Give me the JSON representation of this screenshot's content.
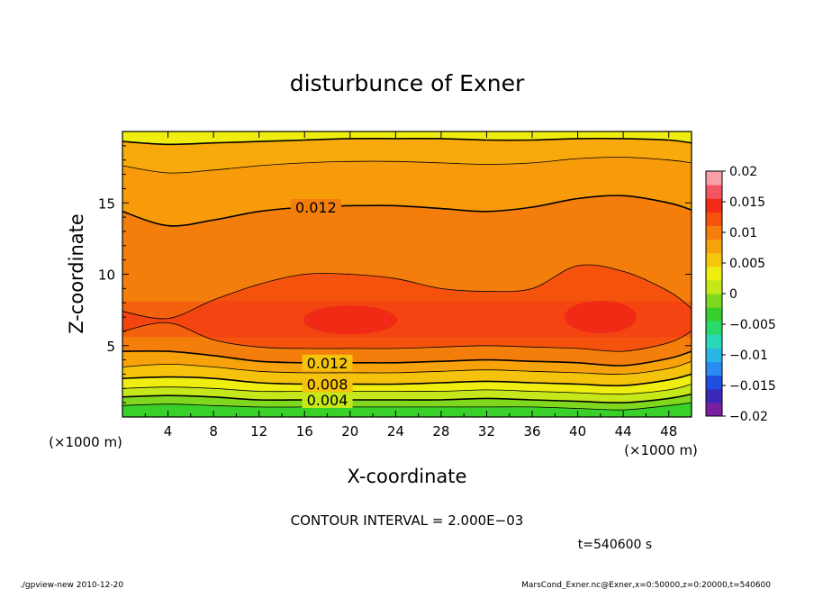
{
  "chart_data": {
    "type": "heatmap",
    "title": "disturbunce of Exner",
    "xlabel": "X-coordinate",
    "ylabel": "Z-coordinate",
    "x_unit": "(×1000 m)",
    "y_unit": "(×1000 m)",
    "xlim": [
      0,
      50
    ],
    "ylim": [
      0,
      20
    ],
    "x_ticks": [
      "4",
      "8",
      "12",
      "16",
      "20",
      "24",
      "28",
      "32",
      "36",
      "40",
      "44",
      "48"
    ],
    "y_ticks": [
      "5",
      "10",
      "15"
    ],
    "colorbar": {
      "range": [
        -0.02,
        0.02
      ],
      "tick_labels": [
        "0.02",
        "0.015",
        "0.01",
        "0.005",
        "0",
        "−0.005",
        "−0.01",
        "−0.015",
        "−0.02"
      ],
      "colors": [
        "#7a1fa2",
        "#3a2ab8",
        "#1e4fe0",
        "#2a8cf0",
        "#28b7e6",
        "#29d8b8",
        "#2bd96a",
        "#38cf2e",
        "#7fd81e",
        "#c6e81a",
        "#f0ee10",
        "#f4c70c",
        "#f6a20a",
        "#f77d0c",
        "#f5520e",
        "#f22a16",
        "#f45560",
        "#f7a0a6"
      ]
    },
    "contours": [
      {
        "level": 0.004,
        "label": "0.004"
      },
      {
        "level": 0.008,
        "label": "0.008"
      },
      {
        "level": 0.012,
        "label": "0.012"
      },
      {
        "level": 0.012,
        "label": "0.012"
      }
    ],
    "x": [
      0,
      4,
      8,
      12,
      16,
      20,
      24,
      28,
      32,
      36,
      40,
      44,
      48,
      50
    ],
    "contour_heights": {
      "c_0.002": [
        0.8,
        0.9,
        0.8,
        0.7,
        0.7,
        0.7,
        0.7,
        0.7,
        0.7,
        0.7,
        0.6,
        0.5,
        0.8,
        1.0
      ],
      "c_0.004": [
        1.4,
        1.5,
        1.4,
        1.2,
        1.2,
        1.2,
        1.2,
        1.2,
        1.3,
        1.2,
        1.1,
        1.0,
        1.3,
        1.6
      ],
      "c_0.006": [
        2.0,
        2.1,
        2.0,
        1.8,
        1.8,
        1.8,
        1.8,
        1.8,
        1.9,
        1.8,
        1.7,
        1.6,
        1.9,
        2.3
      ],
      "c_0.008": [
        2.7,
        2.8,
        2.7,
        2.4,
        2.3,
        2.3,
        2.3,
        2.4,
        2.5,
        2.4,
        2.3,
        2.2,
        2.6,
        3.0
      ],
      "c_0.010": [
        3.5,
        3.7,
        3.5,
        3.2,
        3.1,
        3.1,
        3.1,
        3.2,
        3.3,
        3.2,
        3.1,
        3.0,
        3.4,
        3.9
      ],
      "c_0.012_lower": [
        4.6,
        4.6,
        4.3,
        3.9,
        3.8,
        3.8,
        3.8,
        3.9,
        4.0,
        3.9,
        3.8,
        3.6,
        4.1,
        4.6
      ],
      "c_0.014_lower": [
        6.0,
        6.6,
        5.4,
        4.9,
        4.8,
        4.8,
        4.8,
        4.9,
        5.0,
        4.9,
        4.8,
        4.6,
        5.2,
        6.0
      ],
      "c_0.014_upper": [
        7.4,
        6.9,
        8.2,
        9.3,
        10.0,
        10.0,
        9.7,
        9.0,
        8.8,
        9.0,
        10.6,
        10.2,
        8.8,
        7.6
      ],
      "c_0.012_upper": [
        14.4,
        13.4,
        13.8,
        14.4,
        14.7,
        14.8,
        14.8,
        14.6,
        14.4,
        14.7,
        15.3,
        15.5,
        15.0,
        14.5
      ],
      "c_0.010_upper": [
        17.6,
        17.1,
        17.3,
        17.6,
        17.8,
        17.9,
        17.9,
        17.8,
        17.7,
        17.8,
        18.1,
        18.2,
        18.0,
        17.8
      ],
      "c_0.008_upper": [
        19.3,
        19.1,
        19.2,
        19.3,
        19.4,
        19.5,
        19.5,
        19.5,
        19.4,
        19.4,
        19.5,
        19.5,
        19.4,
        19.2
      ]
    },
    "band_colors": {
      "below_0.002": "#3ad02a",
      "0.002_0.004": "#7fd81e",
      "0.004_0.006": "#c6e81a",
      "0.006_0.008": "#f0ee10",
      "0.008_0.010": "#f6c30c",
      "0.010_0.012": "#f7a20a",
      "0.012_0.014": "#f47e0c",
      "0.014_0.016": "#f5520e",
      "0.016_plus": "#f22a16",
      "upper_0.010_0.012": "#f79b0a",
      "upper_0.008_0.010": "#f8a90b"
    }
  },
  "annotation": {
    "contour_interval": "CONTOUR INTERVAL = 2.000E−03",
    "time": "t=540600 s"
  },
  "footer": {
    "left": "./gpview-new 2010-12-20",
    "right": "MarsCond_Exner.nc@Exner,x=0:50000,z=0:20000,t=540600"
  }
}
